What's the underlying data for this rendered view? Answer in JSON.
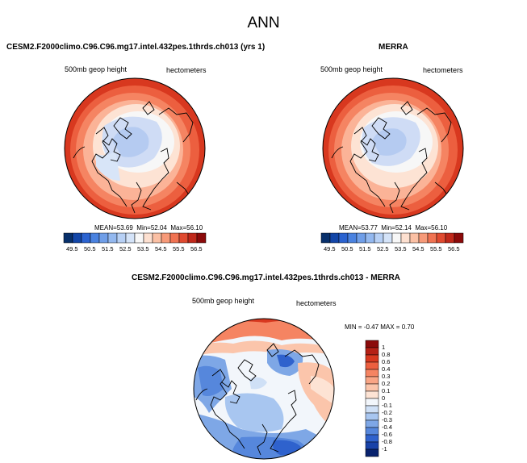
{
  "title": "ANN",
  "panels": [
    {
      "id": "model",
      "title": "CESM2.F2000climo.C96.C96.mg17.intel.432pes.1thrds.ch013 (yrs 1)",
      "variable": "500mb geop height",
      "units": "hectometers",
      "stats": {
        "mean_label": "MEAN=",
        "mean": "53.69",
        "min_label": "Min=",
        "min": "52.04",
        "max_label": "Max=",
        "max": "56.10"
      }
    },
    {
      "id": "obs",
      "title": "MERRA",
      "variable": "500mb geop height",
      "units": "hectometers",
      "stats": {
        "mean_label": "MEAN=",
        "mean": "53.77",
        "min_label": "Min=",
        "min": "52.14",
        "max_label": "Max=",
        "max": "56.10"
      }
    },
    {
      "id": "diff",
      "title": "CESM2.F2000climo.C96.C96.mg17.intel.432pes.1thrds.ch013 - MERRA",
      "variable": "500mb geop height",
      "units": "hectometers",
      "stats_text": "MIN =  -0.47 MAX =   0.70"
    }
  ],
  "colorbar_abs": {
    "ticks": [
      "49.5",
      "50.5",
      "51.5",
      "52.5",
      "53.5",
      "54.5",
      "55.5",
      "56.5"
    ],
    "colors": [
      "#08306b",
      "#1346a8",
      "#2b63d0",
      "#4a82e0",
      "#6f9ee8",
      "#93b8ef",
      "#b7d0f5",
      "#d4e3f8",
      "#f7f7f7",
      "#fde0d0",
      "#fbc0a4",
      "#f79a79",
      "#f07352",
      "#e04a30",
      "#c0281a",
      "#8b0a0a"
    ]
  },
  "colorbar_diff": {
    "ticks": [
      "1",
      "0.8",
      "0.6",
      "0.4",
      "0.3",
      "0.2",
      "0.1",
      "0",
      "-0.1",
      "-0.2",
      "-0.3",
      "-0.4",
      "-0.6",
      "-0.8",
      "-1"
    ],
    "colors": [
      "#8b0a0a",
      "#b52015",
      "#d8381f",
      "#ec5f3f",
      "#f58462",
      "#f9a585",
      "#fbc5ab",
      "#fde3d4",
      "#f2f6fb",
      "#cfe0f6",
      "#a8c6f0",
      "#7ea7e6",
      "#5687dc",
      "#2f62cd",
      "#1842a8",
      "#08226e"
    ]
  }
}
